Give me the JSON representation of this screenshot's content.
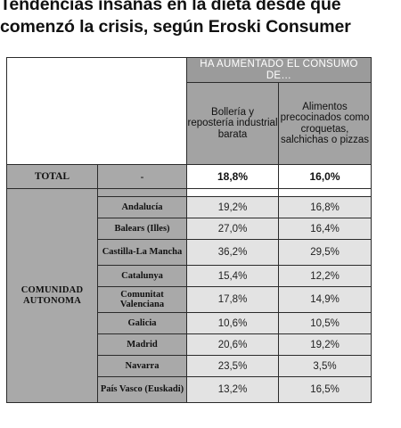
{
  "title": {
    "line1": "Tendencias insanas en la dieta desde que",
    "line2": "comenzó la crisis, según Eroski Consumer"
  },
  "table": {
    "group_header": "HA AUMENTADO EL CONSUMO DE…",
    "columns": [
      "Bollería y repostería industrial barata",
      "Alimentos precocinados como croquetas, salchichas o pizzas"
    ],
    "total": {
      "label": "TOTAL",
      "dash": "-",
      "values": [
        "18,8%",
        "16,0%"
      ]
    },
    "group_label": "COMUNIDAD AUTONOMA",
    "rows": [
      {
        "region": "Andalucía",
        "values": [
          "19,2%",
          "16,8%"
        ]
      },
      {
        "region": "Balears (Illes)",
        "values": [
          "27,0%",
          "16,4%"
        ]
      },
      {
        "region": "Castilla-La Mancha",
        "values": [
          "36,2%",
          "29,5%"
        ]
      },
      {
        "region": "Catalunya",
        "values": [
          "15,4%",
          "12,2%"
        ]
      },
      {
        "region": "Comunitat Valenciana",
        "values": [
          "17,8%",
          "14,9%"
        ]
      },
      {
        "region": "Galicia",
        "values": [
          "10,6%",
          "10,5%"
        ]
      },
      {
        "region": "Madrid",
        "values": [
          "20,6%",
          "19,2%"
        ]
      },
      {
        "region": "Navarra",
        "values": [
          "23,5%",
          "3,5%"
        ]
      },
      {
        "region": "País Vasco (Euskadi)",
        "values": [
          "13,2%",
          "16,5%"
        ]
      }
    ]
  }
}
